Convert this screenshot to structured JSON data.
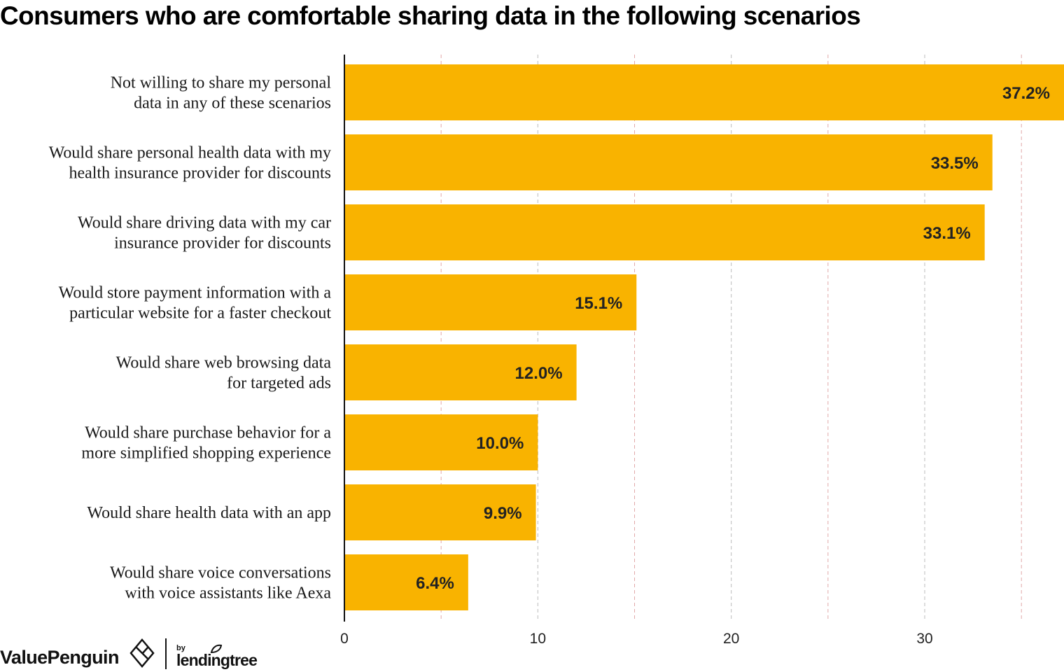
{
  "colors": {
    "bar": "#F9B300",
    "axis": "#111111",
    "grid": "#bcbcbc",
    "grid_minor": "#e2a8a8"
  },
  "chart_data": {
    "type": "bar",
    "orientation": "horizontal",
    "title": "Consumers who are comfortable sharing data in the following scenarios",
    "categories": [
      [
        "Not willing to share my personal",
        "data in any of these scenarios"
      ],
      [
        "Would share personal health data with my",
        "health insurance provider for discounts"
      ],
      [
        "Would share driving data with my car",
        "insurance provider for discounts"
      ],
      [
        "Would store payment information with a",
        "particular website for a faster checkout"
      ],
      [
        "Would share web browsing data",
        "for targeted ads"
      ],
      [
        "Would share purchase behavior for a",
        "more simplified shopping experience"
      ],
      [
        "Would share health data with an app"
      ],
      [
        "Would share voice conversations",
        "with voice assistants like Aexa"
      ]
    ],
    "values": [
      37.2,
      33.5,
      33.1,
      15.1,
      12.0,
      10.0,
      9.9,
      6.4
    ],
    "value_labels": [
      "37.2%",
      "33.5%",
      "33.1%",
      "15.1%",
      "12.0%",
      "10.0%",
      "9.9%",
      "6.4%"
    ],
    "xlim": [
      0,
      37.2
    ],
    "xticks": [
      0,
      10,
      20,
      30
    ],
    "xtick_labels": [
      "0",
      "10",
      "20",
      "30"
    ],
    "grid_lines": [
      5,
      10,
      15,
      20,
      25,
      30,
      35
    ],
    "grid": true,
    "xlabel": "",
    "ylabel": ""
  },
  "branding": {
    "valuepenguin": "ValuePenguin",
    "by": "by",
    "lendingtree": "lendingtree"
  }
}
